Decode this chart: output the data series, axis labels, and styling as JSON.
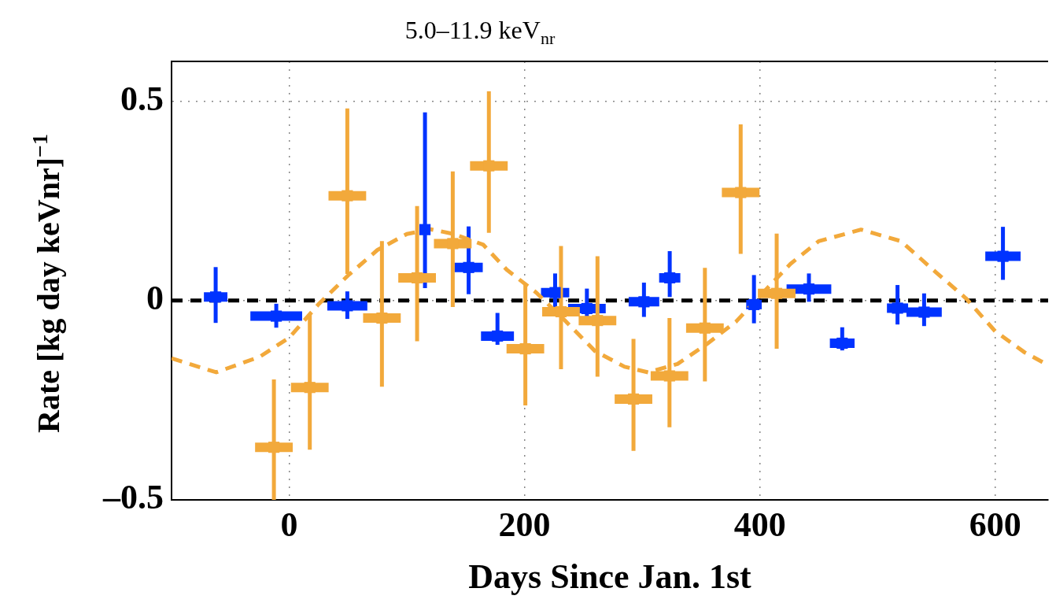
{
  "chart_data": {
    "type": "scatter",
    "title": "5.0–11.9 keV$_{nr}$",
    "xlabel": "Days Since Jan. 1st",
    "ylabel": "Rate [kg day keVnr]$^{−1}$",
    "xlim": [
      -100,
      645
    ],
    "ylim": [
      -0.5,
      0.6
    ],
    "xticks": [
      0,
      200,
      400,
      600
    ],
    "yticks": [
      {
        "value": -0.5,
        "label": "–0.5"
      },
      0,
      0.5
    ],
    "grid": true,
    "legend": false,
    "marker": "square",
    "ref_lines": [
      {
        "axis": "y",
        "value": 0,
        "color": "#000000",
        "line_style": "dashed"
      }
    ],
    "series": [
      {
        "color": "#0033ff",
        "x": [
          -62.5,
          -11,
          49.4,
          115.4,
          152.5,
          177,
          226,
          253,
          301.5,
          323.4,
          395,
          441.7,
          470,
          517,
          539.6,
          606.6
        ],
        "values": [
          0.009,
          -0.039,
          -0.013,
          0.178,
          0.083,
          -0.089,
          0.02,
          -0.02,
          -0.003,
          0.057,
          -0.01,
          0.029,
          -0.107,
          -0.019,
          -0.029,
          0.111
        ],
        "errors": [
          [
            -0.056,
            0.084
          ],
          [
            -0.068,
            -0.008
          ],
          [
            -0.046,
            0.023
          ],
          [
            0.031,
            0.472
          ],
          [
            0.016,
            0.186
          ],
          [
            -0.111,
            -0.031
          ],
          [
            -0.016,
            0.068
          ],
          [
            -0.06,
            0.03
          ],
          [
            -0.041,
            0.045
          ],
          [
            0.009,
            0.124
          ],
          [
            -0.057,
            0.064
          ],
          [
            -0.003,
            0.068
          ],
          [
            -0.125,
            -0.067
          ],
          [
            -0.06,
            0.039
          ],
          [
            -0.064,
            0.018
          ],
          [
            0.052,
            0.185
          ]
        ],
        "xerrors": [
          10,
          22,
          17,
          4,
          12,
          14,
          12,
          16,
          13,
          9,
          6.6,
          19,
          10.5,
          9,
          15,
          15
        ]
      },
      {
        "color": "#f2a93b",
        "x": [
          -13,
          17.5,
          49.4,
          78.8,
          108.7,
          139,
          169.7,
          200.7,
          231,
          262,
          292.6,
          323.2,
          353.3,
          383.7,
          414.3
        ],
        "values": [
          -0.368,
          -0.218,
          0.263,
          -0.044,
          0.057,
          0.143,
          0.338,
          -0.121,
          -0.028,
          -0.05,
          -0.247,
          -0.189,
          -0.069,
          0.271,
          0.018
        ],
        "errors": [
          [
            -0.5,
            -0.198
          ],
          [
            -0.374,
            -0.036
          ],
          [
            0.067,
            0.482
          ],
          [
            -0.216,
            0.149
          ],
          [
            -0.102,
            0.237
          ],
          [
            -0.016,
            0.324
          ],
          [
            0.17,
            0.525
          ],
          [
            -0.263,
            0.039
          ],
          [
            -0.172,
            0.137
          ],
          [
            -0.191,
            0.111
          ],
          [
            -0.377,
            -0.096
          ],
          [
            -0.318,
            -0.044
          ],
          [
            -0.203,
            0.082
          ],
          [
            0.117,
            0.442
          ],
          [
            -0.121,
            0.168
          ]
        ],
        "xerrors": [
          16,
          16,
          16,
          16,
          16,
          16,
          16,
          16,
          16,
          16,
          16,
          16,
          16,
          16,
          16
        ]
      },
      {
        "type": "line",
        "color": "#f2a93b",
        "line_style": "dashed",
        "marker": "none",
        "x": [
          -100,
          -62,
          -25,
          0,
          25,
          50,
          75,
          100,
          120,
          140,
          165,
          185,
          210,
          235,
          260,
          285,
          305,
          330,
          355,
          380,
          405,
          426,
          450,
          486,
          520,
          550,
          575,
          600,
          625,
          645
        ],
        "values": [
          -0.145,
          -0.18,
          -0.141,
          -0.093,
          -0.009,
          0.063,
          0.127,
          0.167,
          0.179,
          0.167,
          0.14,
          0.077,
          0.02,
          -0.052,
          -0.127,
          -0.166,
          -0.18,
          -0.159,
          -0.109,
          -0.052,
          0.027,
          0.092,
          0.149,
          0.178,
          0.149,
          0.07,
          0.006,
          -0.077,
          -0.13,
          -0.162
        ]
      }
    ]
  }
}
